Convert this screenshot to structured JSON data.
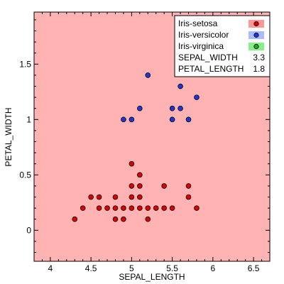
{
  "chart_data": {
    "type": "scatter",
    "xlabel": "SEPAL_LENGTH",
    "ylabel": "PETAL_WIDTH",
    "xlim": [
      3.8,
      6.7
    ],
    "ylim": [
      -0.28,
      1.97
    ],
    "xticks": [
      "4",
      "4.5",
      "5",
      "5.5",
      "6",
      "6.5"
    ],
    "yticks": [
      "0",
      "0.5",
      "1",
      "1.5"
    ],
    "grid": false,
    "background_color": "#ffb3b3",
    "legend_position": "top-right",
    "series": [
      {
        "name": "Iris-setosa",
        "color": "#dd0000",
        "swatch_color": "#ff9999",
        "points": [
          [
            4.3,
            0.1
          ],
          [
            4.4,
            0.2
          ],
          [
            4.5,
            0.3
          ],
          [
            4.6,
            0.2
          ],
          [
            4.6,
            0.3
          ],
          [
            4.7,
            0.2
          ],
          [
            4.8,
            0.1
          ],
          [
            4.8,
            0.2
          ],
          [
            4.8,
            0.3
          ],
          [
            4.9,
            0.1
          ],
          [
            4.9,
            0.2
          ],
          [
            5.0,
            0.2
          ],
          [
            5.0,
            0.3
          ],
          [
            5.0,
            0.4
          ],
          [
            5.0,
            0.6
          ],
          [
            5.1,
            0.2
          ],
          [
            5.1,
            0.3
          ],
          [
            5.1,
            0.4
          ],
          [
            5.1,
            0.5
          ],
          [
            5.2,
            0.1
          ],
          [
            5.2,
            0.2
          ],
          [
            5.3,
            0.2
          ],
          [
            5.4,
            0.2
          ],
          [
            5.4,
            0.4
          ],
          [
            5.5,
            0.2
          ],
          [
            5.7,
            0.3
          ],
          [
            5.7,
            0.4
          ],
          [
            5.8,
            0.2
          ]
        ]
      },
      {
        "name": "Iris-versicolor",
        "color": "#2233dd",
        "swatch_color": "#aabbff",
        "points": [
          [
            4.9,
            1.0
          ],
          [
            5.0,
            1.0
          ],
          [
            5.1,
            1.1
          ],
          [
            5.2,
            1.4
          ],
          [
            5.5,
            1.0
          ],
          [
            5.5,
            1.1
          ],
          [
            5.6,
            1.1
          ],
          [
            5.6,
            1.3
          ],
          [
            5.7,
            1.0
          ],
          [
            5.8,
            1.2
          ]
        ]
      },
      {
        "name": "Iris-virginica",
        "color": "#22aa22",
        "swatch_color": "#88ee88",
        "points": []
      }
    ],
    "readouts": [
      {
        "label": "SEPAL_WIDTH",
        "value": "3.3"
      },
      {
        "label": "PETAL_LENGTH",
        "value": "1.8"
      }
    ]
  }
}
